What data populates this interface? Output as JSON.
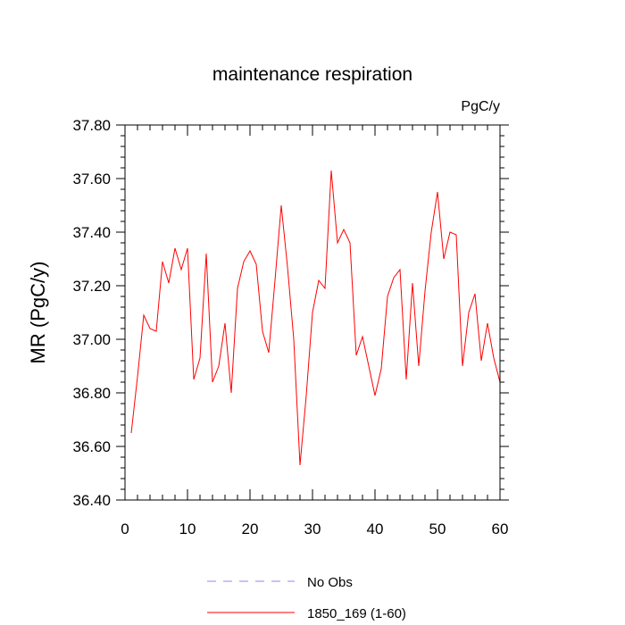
{
  "chart_data": {
    "type": "line",
    "title": "maintenance respiration",
    "units_label": "PgC/y",
    "xlabel": "",
    "ylabel": "MR  (PgC/y)",
    "xlim": [
      0,
      60
    ],
    "ylim": [
      36.4,
      37.8
    ],
    "x_ticks": [
      0,
      10,
      20,
      30,
      40,
      50,
      60
    ],
    "y_ticks": [
      36.4,
      36.6,
      36.8,
      37.0,
      37.2,
      37.4,
      37.6,
      37.8
    ],
    "y_tick_labels": [
      "36.40",
      "36.60",
      "36.80",
      "37.00",
      "37.20",
      "37.40",
      "37.60",
      "37.80"
    ],
    "x_tick_labels": [
      "0",
      "10",
      "20",
      "30",
      "40",
      "50",
      "60"
    ],
    "series": [
      {
        "name": "1850_169 (1-60)",
        "color": "#ff0000",
        "style": "solid",
        "x": [
          1,
          2,
          3,
          4,
          5,
          6,
          7,
          8,
          9,
          10,
          11,
          12,
          13,
          14,
          15,
          16,
          17,
          18,
          19,
          20,
          21,
          22,
          23,
          24,
          25,
          26,
          27,
          28,
          29,
          30,
          31,
          32,
          33,
          34,
          35,
          36,
          37,
          38,
          39,
          40,
          41,
          42,
          43,
          44,
          45,
          46,
          47,
          48,
          49,
          50,
          51,
          52,
          53,
          54,
          55,
          56,
          57,
          58,
          59,
          60
        ],
        "values": [
          36.65,
          36.86,
          37.09,
          37.04,
          37.03,
          37.29,
          37.21,
          37.34,
          37.26,
          37.34,
          36.85,
          36.93,
          37.32,
          36.84,
          36.9,
          37.06,
          36.8,
          37.19,
          37.29,
          37.33,
          37.28,
          37.03,
          36.95,
          37.22,
          37.5,
          37.27,
          37.0,
          36.53,
          36.79,
          37.1,
          37.22,
          37.19,
          37.63,
          37.36,
          37.41,
          37.36,
          36.94,
          37.01,
          36.9,
          36.79,
          36.89,
          37.16,
          37.23,
          37.26,
          36.85,
          37.21,
          36.9,
          37.18,
          37.4,
          37.55,
          37.3,
          37.4,
          37.39,
          36.9,
          37.1,
          37.17,
          36.92,
          37.06,
          36.93,
          36.84
        ]
      }
    ],
    "legend": {
      "placement": "bottom-center",
      "entries": [
        {
          "label": "No Obs",
          "color": "#8888ff",
          "style": "dashed"
        },
        {
          "label": "1850_169 (1-60)",
          "color": "#ff0000",
          "style": "solid"
        }
      ]
    }
  }
}
